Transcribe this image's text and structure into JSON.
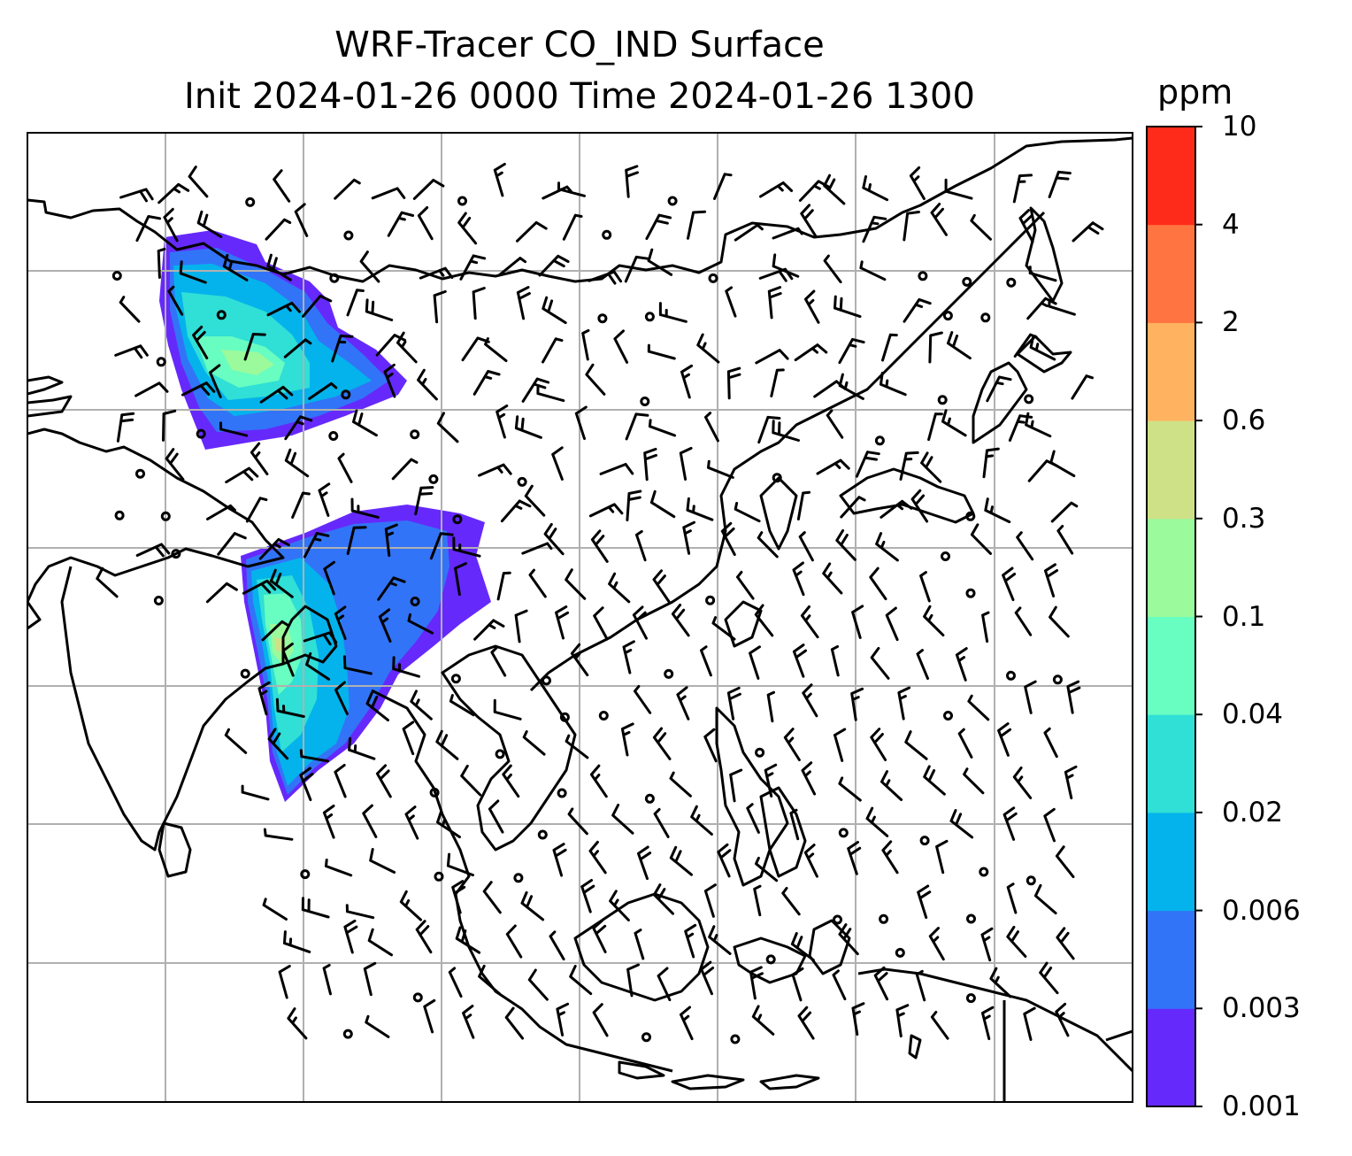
{
  "title": {
    "line1": "WRF-Tracer CO_IND Surface",
    "line2": "Init 2024-01-26 0000 Time 2024-01-26 1300"
  },
  "colorbar": {
    "unit": "ppm",
    "levels": [
      "0.001",
      "0.003",
      "0.006",
      "0.02",
      "0.04",
      "0.1",
      "0.3",
      "0.6",
      "2",
      "4",
      "10"
    ],
    "colors": [
      "#6629fc",
      "#3274f7",
      "#04b3eb",
      "#30dfd6",
      "#68fdc1",
      "#9afa9c",
      "#cfe187",
      "#ffb360",
      "#ff7440",
      "#ff2b1a"
    ]
  },
  "map": {
    "background": "#ffffff",
    "gridline_color": "#b0b0b0",
    "coastline_color": "#000000",
    "barb_color": "#000000"
  }
}
